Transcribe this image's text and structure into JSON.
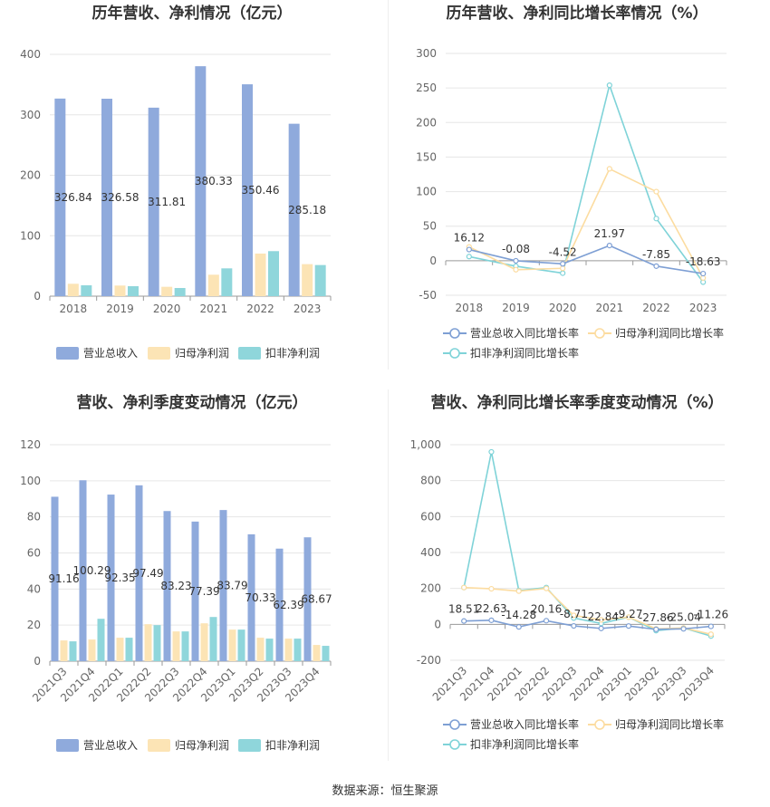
{
  "source": "数据来源：恒生聚源",
  "colors": {
    "revenue": "#8faadc",
    "parent_profit": "#fce4b5",
    "deducted_profit": "#8fd6db",
    "rev_growth_line": "#7e9fd4",
    "parent_growth_line": "#fcdca0",
    "deducted_growth_line": "#7fd3d8"
  },
  "chart_data": [
    {
      "type": "bar",
      "title": "历年营收、净利情况（亿元）",
      "categories": [
        "2018",
        "2019",
        "2020",
        "2021",
        "2022",
        "2023"
      ],
      "ylim": [
        0,
        400
      ],
      "yticks": [
        0,
        100,
        200,
        300,
        400
      ],
      "grid": true,
      "legend_position": "bottom",
      "series": [
        {
          "name": "营业总收入",
          "values": [
            326.84,
            326.58,
            311.81,
            380.33,
            350.46,
            285.18
          ],
          "labels": [
            "326.84",
            "326.58",
            "311.81",
            "380.33",
            "350.46",
            "285.18"
          ]
        },
        {
          "name": "归母净利润",
          "values": [
            20.5,
            17.6,
            15.5,
            35.5,
            70.5,
            53
          ]
        },
        {
          "name": "扣非净利润",
          "values": [
            18,
            16.5,
            13.5,
            46,
            74.5,
            51.5
          ]
        }
      ]
    },
    {
      "type": "line",
      "title": "历年营收、净利同比增长率情况（%）",
      "categories": [
        "2018",
        "2019",
        "2020",
        "2021",
        "2022",
        "2023"
      ],
      "ylim": [
        -50,
        300
      ],
      "yticks": [
        -50,
        0,
        50,
        100,
        150,
        200,
        250,
        300
      ],
      "grid": true,
      "legend_position": "bottom",
      "series": [
        {
          "name": "营业总收入同比增长率",
          "values": [
            16.12,
            -0.08,
            -4.52,
            21.97,
            -7.85,
            -18.63
          ],
          "labels": [
            "16.12",
            "-0.08",
            "-4.52",
            "21.97",
            "-7.85",
            "-18.63"
          ]
        },
        {
          "name": "归母净利润同比增长率",
          "values": [
            20,
            -13,
            -11,
            133,
            100,
            -25
          ]
        },
        {
          "name": "扣非净利润同比增长率",
          "values": [
            6,
            -8,
            -18,
            254,
            61,
            -31
          ]
        }
      ]
    },
    {
      "type": "bar",
      "title": "营收、净利季度变动情况（亿元）",
      "categories": [
        "2021Q3",
        "2021Q4",
        "2022Q1",
        "2022Q2",
        "2022Q3",
        "2022Q4",
        "2023Q1",
        "2023Q2",
        "2023Q3",
        "2023Q4"
      ],
      "ylim": [
        0,
        120
      ],
      "yticks": [
        0,
        20,
        40,
        60,
        80,
        100,
        120
      ],
      "grid": true,
      "legend_position": "bottom",
      "series": [
        {
          "name": "营业总收入",
          "values": [
            91.16,
            100.29,
            92.35,
            97.49,
            83.23,
            77.39,
            83.79,
            70.33,
            62.39,
            68.67
          ],
          "labels": [
            "91.16",
            "100.29",
            "92.35",
            "97.49",
            "83.23",
            "77.39",
            "83.79",
            "70.33",
            "62.39",
            "68.67"
          ]
        },
        {
          "name": "归母净利润",
          "values": [
            11.5,
            12,
            13,
            20.5,
            16.5,
            21,
            17.5,
            13,
            12.5,
            9
          ]
        },
        {
          "name": "扣非净利润",
          "values": [
            11,
            23.5,
            13,
            20,
            16.5,
            24.5,
            17.5,
            12.5,
            12.5,
            8.5
          ]
        }
      ]
    },
    {
      "type": "line",
      "title": "营收、净利同比增长率季度变动情况（%）",
      "categories": [
        "2021Q3",
        "2021Q4",
        "2022Q1",
        "2022Q2",
        "2022Q3",
        "2022Q4",
        "2023Q1",
        "2023Q2",
        "2023Q3",
        "2023Q4"
      ],
      "ylim": [
        -200,
        1000
      ],
      "yticks": [
        -200,
        0,
        200,
        400,
        600,
        800,
        1000
      ],
      "ytick_labels": [
        "-200",
        "0",
        "200",
        "400",
        "600",
        "800",
        "1,000"
      ],
      "grid": true,
      "legend_position": "bottom",
      "series": [
        {
          "name": "营业总收入同比增长率",
          "values": [
            18.51,
            22.63,
            -14.28,
            20.16,
            -8.71,
            -22.84,
            -9.27,
            -27.86,
            -25.04,
            -11.26
          ],
          "labels": [
            "18.51",
            "22.63",
            "-14.28",
            "20.16",
            "-8.71",
            "-22.84",
            "-9.27",
            "-27.86",
            "-25.04",
            "-11.26"
          ]
        },
        {
          "name": "归母净利润同比增长率",
          "values": [
            205,
            198,
            185,
            200,
            50,
            25,
            40,
            -25,
            -20,
            -55
          ]
        },
        {
          "name": "扣非净利润同比增长率",
          "values": [
            205,
            960,
            188,
            205,
            35,
            5,
            40,
            -35,
            -20,
            -65
          ]
        }
      ]
    }
  ]
}
